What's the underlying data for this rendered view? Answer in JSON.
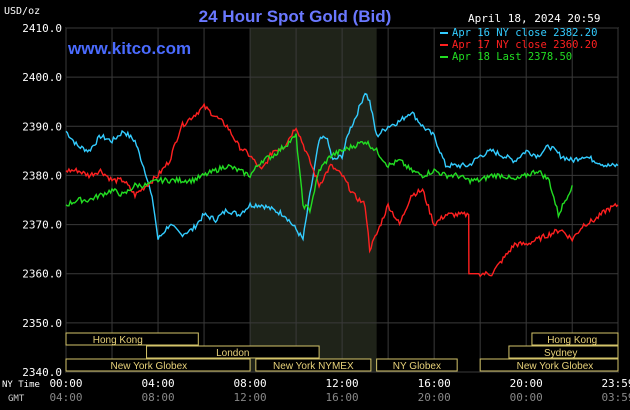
{
  "chart_data": {
    "type": "line",
    "title": "24 Hour Spot Gold (Bid)",
    "watermark": "www.kitco.com",
    "date_label": "April 18, 2024 20:59",
    "ylabel": "USD/oz",
    "xlabel_primary": "NY Time",
    "xlabel_secondary": "GMT",
    "ylim": [
      2340,
      2410
    ],
    "y_ticks": [
      "2410.0",
      "2400.0",
      "2390.0",
      "2380.0",
      "2370.0",
      "2360.0",
      "2350.0",
      "2340.0"
    ],
    "x_ticks_ny": [
      "00:00",
      "04:00",
      "08:00",
      "12:00",
      "16:00",
      "20:00",
      "23:59"
    ],
    "x_ticks_gmt": [
      "04:00",
      "08:00",
      "12:00",
      "16:00",
      "20:00",
      "00:00",
      "03:59"
    ],
    "grid": true,
    "legend_position": "top-right",
    "highlight_band": {
      "start": 8.0,
      "end": 13.5
    },
    "series": [
      {
        "name": "Apr 16 NY close",
        "label": "Apr 16 NY close 2382.20",
        "color": "#33ccff",
        "x": [
          0,
          0.5,
          1,
          1.5,
          2,
          2.5,
          3,
          3.5,
          3.8,
          4,
          4.5,
          5,
          5.5,
          6,
          6.5,
          7,
          7.5,
          8,
          8.5,
          9,
          9.5,
          10,
          10.3,
          10.6,
          11,
          11.3,
          11.6,
          12,
          12.3,
          12.6,
          13,
          13.2,
          13.5,
          14,
          14.5,
          15,
          15.5,
          16,
          16.5,
          17,
          17.5,
          18,
          18.5,
          19,
          19.5,
          20,
          20.5,
          21,
          21.5,
          22,
          22.5,
          23,
          23.5,
          23.99
        ],
        "y": [
          2389,
          2386,
          2385,
          2388,
          2387,
          2389,
          2387,
          2380,
          2374,
          2367,
          2370,
          2368,
          2369,
          2372,
          2371,
          2373,
          2372,
          2374,
          2374,
          2373,
          2372,
          2369,
          2367,
          2376,
          2387,
          2388,
          2383,
          2384,
          2389,
          2392,
          2397,
          2395,
          2388,
          2390,
          2391,
          2393,
          2390,
          2388,
          2382,
          2382,
          2382,
          2384,
          2385,
          2384,
          2383,
          2385,
          2384,
          2386,
          2384,
          2383,
          2384,
          2383,
          2382,
          2382
        ]
      },
      {
        "name": "Apr 17 NY close",
        "label": "Apr 17 NY close 2360.20",
        "color": "#ff2020",
        "x": [
          0,
          0.5,
          1,
          1.5,
          2,
          2.5,
          3,
          3.5,
          4,
          4.5,
          5,
          5.5,
          6,
          6.5,
          7,
          7.5,
          8,
          8.5,
          9,
          9.5,
          10,
          10.5,
          11,
          11.5,
          12,
          12.5,
          13,
          13.2,
          13.5,
          14,
          14.5,
          15,
          15.5,
          16,
          16.5,
          17,
          17.5,
          17.51,
          18,
          18.5,
          19,
          19.5,
          20,
          20.5,
          21,
          21.5,
          22,
          22.5,
          23,
          23.5,
          23.99
        ],
        "y": [
          2381,
          2381,
          2380,
          2381,
          2379,
          2379,
          2376,
          2378,
          2380,
          2383,
          2390,
          2392,
          2394,
          2392,
          2390,
          2386,
          2384,
          2381,
          2385,
          2386,
          2390,
          2384,
          2378,
          2382,
          2380,
          2376,
          2374,
          2365,
          2368,
          2374,
          2370,
          2376,
          2377,
          2370,
          2372,
          2372,
          2372,
          2360,
          2360,
          2360,
          2363,
          2366,
          2366,
          2367,
          2368,
          2369,
          2367,
          2370,
          2371,
          2373,
          2374
        ]
      },
      {
        "name": "Apr 18 Last",
        "label": "Apr 18 Last 2378.50",
        "color": "#22dd22",
        "x": [
          0,
          0.5,
          1,
          1.5,
          2,
          2.5,
          3,
          3.5,
          4,
          4.5,
          5,
          5.5,
          6,
          6.5,
          7,
          7.5,
          8,
          8.5,
          9,
          9.5,
          10,
          10.3,
          10.6,
          11,
          11.5,
          12,
          12.5,
          13,
          13.5,
          14,
          14.5,
          15,
          15.5,
          16,
          16.5,
          17,
          17.5,
          18,
          18.5,
          19,
          19.5,
          20,
          20.5,
          21,
          21.4,
          21.7,
          22
        ],
        "y": [
          2374,
          2375,
          2375,
          2376,
          2377,
          2376,
          2378,
          2378,
          2379,
          2379,
          2379,
          2379,
          2380,
          2381,
          2382,
          2381,
          2380,
          2383,
          2384,
          2386,
          2388,
          2374,
          2373,
          2381,
          2384,
          2385,
          2386,
          2387,
          2385,
          2382,
          2383,
          2381,
          2380,
          2381,
          2380,
          2380,
          2379,
          2379,
          2380,
          2380,
          2379,
          2380,
          2381,
          2379,
          2372,
          2375,
          2378
        ]
      }
    ],
    "session_bars": [
      {
        "label": "Hong Kong",
        "start": 0,
        "end": 5.75,
        "row": 0,
        "text_center": 2.25
      },
      {
        "label": "London",
        "start": 3.5,
        "end": 11.0,
        "row": 1,
        "text_center": 7.25
      },
      {
        "label": "New York Globex",
        "start": 0,
        "end": 8.0,
        "row": 2,
        "text_center": 3.6
      },
      {
        "label": "New York NYMEX",
        "start": 8.25,
        "end": 13.25,
        "row": 2,
        "text_center": 10.75
      },
      {
        "label": "NY Globex",
        "start": 13.5,
        "end": 17.0,
        "row": 2,
        "text_center": 15.25
      },
      {
        "label": "Hong Kong",
        "start": 20.25,
        "end": 23.99,
        "row": 0,
        "text_center": 22.0
      },
      {
        "label": "Sydney",
        "start": 19.25,
        "end": 23.99,
        "row": 1,
        "text_center": 21.5
      },
      {
        "label": "New York Globex",
        "start": 18.0,
        "end": 23.99,
        "row": 2,
        "text_center": 21.25
      }
    ]
  }
}
